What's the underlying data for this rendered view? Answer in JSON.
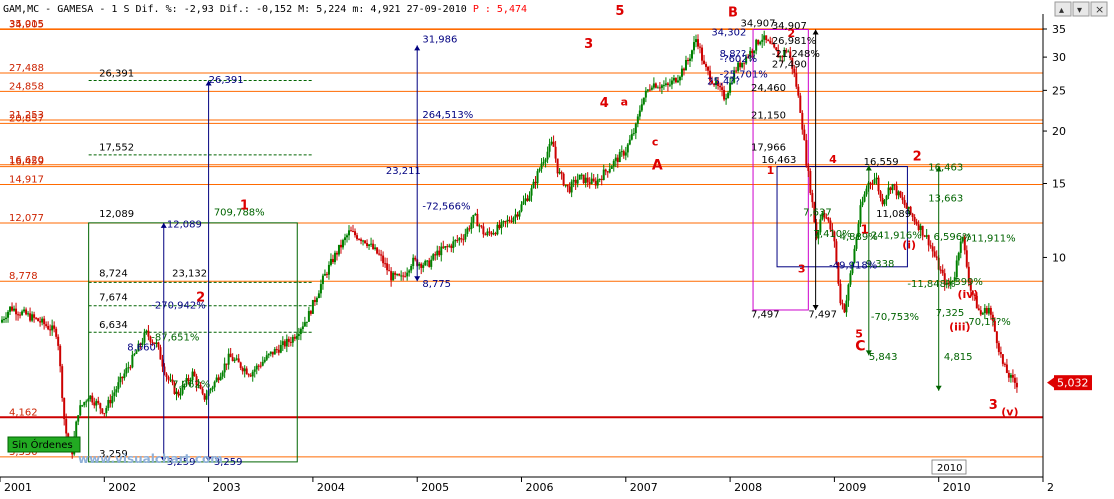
{
  "header": {
    "symbol": "GAM,MC",
    "name": "GAMESA",
    "interval": "1 S",
    "dif_pct_label": "Dif. %:",
    "dif_pct": "-2,93",
    "dif_label": "Dif.:",
    "dif": "-0,152",
    "max_label": "M:",
    "max": "5,224",
    "min_label": "m:",
    "min": "4,921",
    "date": "27-09-2010",
    "price_label": "P :",
    "price": "5,474"
  },
  "footer": {
    "orders_label": "Sin Órdenes",
    "watermark": "www.visualchart.com"
  },
  "window_buttons": [
    "▴",
    "▾",
    "×"
  ],
  "current_price_badge": "5,032",
  "colors": {
    "up_candle": "#008000",
    "down_candle": "#cc0000",
    "level_line": "#ff6a00",
    "support_line": "#cc0000",
    "wave_label": "#dd0000",
    "price_text": "#ff0000",
    "badge_bg": "#dd0000",
    "dark_green": "#006400",
    "magenta": "#cc00cc",
    "navy": "#000080"
  },
  "chart_data": {
    "type": "candlestick",
    "scale": "log",
    "ylim": [
      3.0,
      38.0
    ],
    "xlim": [
      2001.0,
      2011.0
    ],
    "x_ticks": [
      "2001",
      "2002",
      "2003",
      "2004",
      "2005",
      "2006",
      "2007",
      "2008",
      "2009",
      "2010",
      "2"
    ],
    "y_ticks": [
      35,
      30,
      25,
      20,
      15,
      10
    ],
    "year_box_label": "2010",
    "price_path": [
      [
        2001.0,
        7.0
      ],
      [
        2001.1,
        7.6
      ],
      [
        2001.25,
        7.3
      ],
      [
        2001.4,
        7.0
      ],
      [
        2001.55,
        6.6
      ],
      [
        2001.62,
        4.0
      ],
      [
        2001.68,
        3.3
      ],
      [
        2001.75,
        4.3
      ],
      [
        2001.85,
        4.7
      ],
      [
        2002.0,
        4.3
      ],
      [
        2002.1,
        4.8
      ],
      [
        2002.25,
        5.6
      ],
      [
        2002.4,
        6.6
      ],
      [
        2002.5,
        6.2
      ],
      [
        2002.6,
        5.2
      ],
      [
        2002.7,
        4.7
      ],
      [
        2002.85,
        5.3
      ],
      [
        2002.95,
        4.6
      ],
      [
        2003.05,
        5.0
      ],
      [
        2003.2,
        5.8
      ],
      [
        2003.4,
        5.3
      ],
      [
        2003.6,
        5.9
      ],
      [
        2003.8,
        6.4
      ],
      [
        2003.95,
        7.2
      ],
      [
        2004.1,
        8.9
      ],
      [
        2004.2,
        10.0
      ],
      [
        2004.35,
        11.5
      ],
      [
        2004.5,
        11.0
      ],
      [
        2004.65,
        10.0
      ],
      [
        2004.75,
        9.0
      ],
      [
        2004.85,
        8.9
      ],
      [
        2004.95,
        9.8
      ],
      [
        2005.1,
        9.6
      ],
      [
        2005.2,
        10.3
      ],
      [
        2005.3,
        10.6
      ],
      [
        2005.45,
        11.3
      ],
      [
        2005.55,
        12.5
      ],
      [
        2005.65,
        11.3
      ],
      [
        2005.8,
        11.8
      ],
      [
        2005.95,
        12.7
      ],
      [
        2006.1,
        14.5
      ],
      [
        2006.2,
        17.0
      ],
      [
        2006.3,
        18.8
      ],
      [
        2006.35,
        16.0
      ],
      [
        2006.45,
        14.5
      ],
      [
        2006.55,
        15.5
      ],
      [
        2006.7,
        15.0
      ],
      [
        2006.85,
        16.5
      ],
      [
        2007.0,
        18.0
      ],
      [
        2007.1,
        20.5
      ],
      [
        2007.15,
        23.5
      ],
      [
        2007.25,
        26.0
      ],
      [
        2007.4,
        25.5
      ],
      [
        2007.5,
        27.0
      ],
      [
        2007.6,
        29.5
      ],
      [
        2007.68,
        33.5
      ],
      [
        2007.75,
        28.5
      ],
      [
        2007.85,
        26.0
      ],
      [
        2007.95,
        24.0
      ],
      [
        2008.05,
        28.0
      ],
      [
        2008.2,
        31.0
      ],
      [
        2008.3,
        33.5
      ],
      [
        2008.38,
        32.0
      ],
      [
        2008.48,
        30.0
      ],
      [
        2008.55,
        31.5
      ],
      [
        2008.62,
        27.0
      ],
      [
        2008.68,
        22.0
      ],
      [
        2008.73,
        17.0
      ],
      [
        2008.78,
        14.0
      ],
      [
        2008.83,
        11.0
      ],
      [
        2008.88,
        13.0
      ],
      [
        2008.92,
        12.5
      ],
      [
        2009.0,
        11.0
      ],
      [
        2009.05,
        8.0
      ],
      [
        2009.1,
        7.5
      ],
      [
        2009.18,
        10.0
      ],
      [
        2009.25,
        13.0
      ],
      [
        2009.32,
        15.0
      ],
      [
        2009.4,
        15.5
      ],
      [
        2009.45,
        13.5
      ],
      [
        2009.55,
        15.0
      ],
      [
        2009.62,
        14.0
      ],
      [
        2009.7,
        13.0
      ],
      [
        2009.8,
        12.0
      ],
      [
        2009.9,
        11.0
      ],
      [
        2010.0,
        9.5
      ],
      [
        2010.08,
        8.5
      ],
      [
        2010.15,
        9.0
      ],
      [
        2010.22,
        11.5
      ],
      [
        2010.3,
        8.5
      ],
      [
        2010.4,
        7.3
      ],
      [
        2010.48,
        7.6
      ],
      [
        2010.55,
        6.5
      ],
      [
        2010.62,
        5.5
      ],
      [
        2010.7,
        5.1
      ],
      [
        2010.75,
        5.0
      ]
    ],
    "horizontal_levels": [
      {
        "price": 35.015,
        "label": "35,015",
        "color": "#ff6a00",
        "dx": 0
      },
      {
        "price": 34.905,
        "label": "34,905",
        "color": "#ff6a00",
        "dx": 0
      },
      {
        "price": 27.488,
        "label": "27,488",
        "color": "#ff6a00",
        "dx": 0
      },
      {
        "price": 24.858,
        "label": "24,858",
        "color": "#ff6a00",
        "dx": 0
      },
      {
        "price": 21.253,
        "label": "21,253",
        "color": "#ff6a00",
        "dx": 0
      },
      {
        "price": 20.857,
        "label": "20,857",
        "color": "#ff6a00",
        "dx": 0
      },
      {
        "price": 16.62,
        "label": "16,620",
        "color": "#ff6a00",
        "dx": 0
      },
      {
        "price": 16.459,
        "label": "16,459",
        "color": "#ff6a00",
        "dx": 0
      },
      {
        "price": 14.917,
        "label": "14,917",
        "color": "#ff6a00",
        "dx": 0
      },
      {
        "price": 12.077,
        "label": "12,077",
        "color": "#ff6a00",
        "dx": 0
      },
      {
        "price": 8.778,
        "label": "8,778",
        "color": "#ff6a00",
        "dx": 0
      },
      {
        "price": 4.162,
        "label": "4,162",
        "color": "#cc0000",
        "dx": 0
      },
      {
        "price": 3.35,
        "label": "3,350",
        "color": "#ff6a00",
        "dx": 0
      }
    ],
    "dashed_levels": [
      {
        "x1": 2001.85,
        "x2": 2004.0,
        "price": 26.391,
        "label": "26,391"
      },
      {
        "x1": 2001.85,
        "x2": 2004.0,
        "price": 17.552,
        "label": "17,552"
      },
      {
        "x1": 2001.85,
        "x2": 2004.0,
        "price": 8.724,
        "label": "8,724"
      },
      {
        "x1": 2001.85,
        "x2": 2004.0,
        "price": 7.674,
        "label": "7,674"
      },
      {
        "x1": 2001.85,
        "x2": 2004.0,
        "price": 6.634,
        "label": "6,634"
      }
    ],
    "fib_boxes": [
      {
        "x1": 2001.85,
        "x2": 2003.85,
        "p_low": 3.259,
        "p_high": 12.089,
        "color": "#006400"
      },
      {
        "x1": 2008.22,
        "x2": 2008.75,
        "p_low": 7.497,
        "p_high": 34.907,
        "color": "#cc00cc"
      },
      {
        "x1": 2008.45,
        "x2": 2009.7,
        "p_low": 9.5,
        "p_high": 16.463,
        "color": "#000080"
      }
    ],
    "vertical_arrows": [
      {
        "x": 2002.57,
        "p_from": 3.259,
        "p_to": 12.089,
        "color": "#000080"
      },
      {
        "x": 2003.0,
        "p_from": 3.259,
        "p_to": 26.391,
        "color": "#000080"
      },
      {
        "x": 2005.0,
        "p_from": 8.775,
        "p_to": 31.986,
        "color": "#000080"
      },
      {
        "x": 2008.82,
        "p_from": 7.497,
        "p_to": 34.907,
        "color": "#000000"
      },
      {
        "x": 2009.33,
        "p_from": 5.843,
        "p_to": 16.559,
        "color": "#006400"
      },
      {
        "x": 2010.0,
        "p_from": 4.815,
        "p_to": 16.463,
        "color": "#006400"
      }
    ],
    "annotations": [
      {
        "x": 2001.95,
        "p": 27.0,
        "text": "26,391",
        "color": "#000000"
      },
      {
        "x": 2003.0,
        "p": 26.0,
        "text": "26,391",
        "color": "#000080"
      },
      {
        "x": 2001.95,
        "p": 18.0,
        "text": "17,552",
        "color": "#000000"
      },
      {
        "x": 2001.95,
        "p": 12.5,
        "text": "12,089",
        "color": "#000000"
      },
      {
        "x": 2002.6,
        "p": 11.8,
        "text": "12,089",
        "color": "#000080"
      },
      {
        "x": 2003.05,
        "p": 12.6,
        "text": "709,788%",
        "color": "#006400"
      },
      {
        "x": 2001.95,
        "p": 9.0,
        "text": "8,724",
        "color": "#000000"
      },
      {
        "x": 2002.65,
        "p": 9.0,
        "text": "23,132",
        "color": "#000000"
      },
      {
        "x": 2001.95,
        "p": 7.9,
        "text": "7,674",
        "color": "#000000"
      },
      {
        "x": 2002.45,
        "p": 7.55,
        "text": "-270,942%",
        "color": "#000080"
      },
      {
        "x": 2001.95,
        "p": 6.8,
        "text": "6,634",
        "color": "#000000"
      },
      {
        "x": 2002.45,
        "p": 6.35,
        "text": "-87,651%",
        "color": "#006400"
      },
      {
        "x": 2002.22,
        "p": 6.0,
        "text": "8,660",
        "color": "#000080"
      },
      {
        "x": 2002.65,
        "p": 4.9,
        "text": "7,062%",
        "color": "#006400"
      },
      {
        "x": 2001.95,
        "p": 3.35,
        "text": "3,259",
        "color": "#000000"
      },
      {
        "x": 2002.6,
        "p": 3.2,
        "text": "3,259",
        "color": "#000080"
      },
      {
        "x": 2003.05,
        "p": 3.2,
        "text": "3,259",
        "color": "#000080"
      },
      {
        "x": 2005.05,
        "p": 32.5,
        "text": "31,986",
        "color": "#000080"
      },
      {
        "x": 2005.05,
        "p": 21.5,
        "text": "264,513%",
        "color": "#000080"
      },
      {
        "x": 2004.7,
        "p": 15.8,
        "text": "23,211",
        "color": "#000080"
      },
      {
        "x": 2005.05,
        "p": 13.0,
        "text": "-72,566%",
        "color": "#000080"
      },
      {
        "x": 2005.05,
        "p": 8.5,
        "text": "8,775",
        "color": "#000080"
      },
      {
        "x": 2007.9,
        "p": 30.0,
        "text": "8,8??",
        "color": "#000080"
      },
      {
        "x": 2007.82,
        "p": 33.8,
        "text": "34,302",
        "color": "#000080"
      },
      {
        "x": 2007.9,
        "p": 29.2,
        "text": "-?602%",
        "color": "#000080"
      },
      {
        "x": 2007.9,
        "p": 26.8,
        "text": "-25,701%",
        "color": "#000080"
      },
      {
        "x": 2007.78,
        "p": 25.8,
        "text": "25,4??",
        "color": "#000080"
      },
      {
        "x": 2008.1,
        "p": 35.5,
        "text": "34,907",
        "color": "#000000"
      },
      {
        "x": 2008.4,
        "p": 35.0,
        "text": "34,907",
        "color": "#000000"
      },
      {
        "x": 2008.4,
        "p": 32.2,
        "text": "26,981%",
        "color": "#000000"
      },
      {
        "x": 2008.4,
        "p": 30.0,
        "text": "-21,248%",
        "color": "#000000"
      },
      {
        "x": 2008.4,
        "p": 28.3,
        "text": "27,490",
        "color": "#000000"
      },
      {
        "x": 2008.2,
        "p": 24.9,
        "text": "24,460",
        "color": "#000000"
      },
      {
        "x": 2008.2,
        "p": 21.4,
        "text": "21,150",
        "color": "#000000"
      },
      {
        "x": 2008.2,
        "p": 18.0,
        "text": "17,966",
        "color": "#000000"
      },
      {
        "x": 2008.3,
        "p": 16.8,
        "text": "16,463",
        "color": "#000000"
      },
      {
        "x": 2008.2,
        "p": 7.2,
        "text": "7,497",
        "color": "#000000"
      },
      {
        "x": 2008.75,
        "p": 7.2,
        "text": "7,497",
        "color": "#000000"
      },
      {
        "x": 2009.28,
        "p": 16.6,
        "text": "16,559",
        "color": "#000000"
      },
      {
        "x": 2009.9,
        "p": 16.1,
        "text": "16,463",
        "color": "#006400"
      },
      {
        "x": 2009.9,
        "p": 13.6,
        "text": "13,663",
        "color": "#006400"
      },
      {
        "x": 2009.4,
        "p": 12.5,
        "text": "11,089",
        "color": "#000000"
      },
      {
        "x": 2009.35,
        "p": 11.1,
        "text": "241,916%",
        "color": "#006400"
      },
      {
        "x": 2009.95,
        "p": 11.0,
        "text": "6,596%",
        "color": "#006400"
      },
      {
        "x": 2010.25,
        "p": 10.9,
        "text": "711,911%",
        "color": "#006400"
      },
      {
        "x": 2009.3,
        "p": 9.5,
        "text": "9,338",
        "color": "#006400"
      },
      {
        "x": 2009.7,
        "p": 8.5,
        "text": "-11,848%",
        "color": "#006400"
      },
      {
        "x": 2010.15,
        "p": 8.6,
        "text": "399%",
        "color": "#006400"
      },
      {
        "x": 2009.35,
        "p": 7.1,
        "text": "-70,753%",
        "color": "#006400"
      },
      {
        "x": 2009.97,
        "p": 7.25,
        "text": "7,325",
        "color": "#006400"
      },
      {
        "x": 2010.25,
        "p": 6.9,
        "text": "-70,1??%",
        "color": "#006400"
      },
      {
        "x": 2009.33,
        "p": 5.7,
        "text": "5,843",
        "color": "#006400"
      },
      {
        "x": 2010.05,
        "p": 5.7,
        "text": "4,815",
        "color": "#006400"
      },
      {
        "x": 2008.8,
        "p": 11.2,
        "text": "7,410%",
        "color": "#006400"
      },
      {
        "x": 2009.05,
        "p": 11.0,
        "text": "4,889%",
        "color": "#006400"
      },
      {
        "x": 2008.95,
        "p": 9.4,
        "text": "-49,918%",
        "color": "#000080"
      },
      {
        "x": 2008.7,
        "p": 12.6,
        "text": "7,637",
        "color": "#006400"
      }
    ],
    "wave_labels": [
      {
        "x": 2003.3,
        "p": 13.0,
        "text": "1",
        "color": "#dd0000",
        "size": 13
      },
      {
        "x": 2002.88,
        "p": 7.85,
        "text": "2",
        "color": "#dd0000",
        "size": 13
      },
      {
        "x": 2006.6,
        "p": 31.5,
        "text": "3",
        "color": "#dd0000",
        "size": 13
      },
      {
        "x": 2006.75,
        "p": 22.8,
        "text": "4",
        "color": "#dd0000",
        "size": 13
      },
      {
        "x": 2006.9,
        "p": 37.8,
        "text": "5",
        "color": "#dd0000",
        "size": 13
      },
      {
        "x": 2006.95,
        "p": 23.0,
        "text": "a",
        "color": "#dd0000",
        "size": 11
      },
      {
        "x": 2007.25,
        "p": 18.5,
        "text": "c",
        "color": "#dd0000",
        "size": 11
      },
      {
        "x": 2007.25,
        "p": 16.2,
        "text": "A",
        "color": "#dd0000",
        "size": 14
      },
      {
        "x": 2007.98,
        "p": 37.5,
        "text": "B",
        "color": "#dd0000",
        "size": 13
      },
      {
        "x": 2008.55,
        "p": 33.5,
        "text": "2",
        "color": "#dd0000",
        "size": 11
      },
      {
        "x": 2008.35,
        "p": 15.8,
        "text": "1",
        "color": "#dd0000",
        "size": 11
      },
      {
        "x": 2008.95,
        "p": 16.8,
        "text": "4",
        "color": "#dd0000",
        "size": 11
      },
      {
        "x": 2008.65,
        "p": 9.2,
        "text": "3",
        "color": "#dd0000",
        "size": 11
      },
      {
        "x": 2009.2,
        "p": 6.45,
        "text": "5",
        "color": "#dd0000",
        "size": 11
      },
      {
        "x": 2009.2,
        "p": 6.0,
        "text": "C",
        "color": "#dd0000",
        "size": 14
      },
      {
        "x": 2009.25,
        "p": 11.4,
        "text": "1",
        "color": "#dd0000",
        "size": 12
      },
      {
        "x": 2009.75,
        "p": 17.0,
        "text": "2",
        "color": "#dd0000",
        "size": 13
      },
      {
        "x": 2009.65,
        "p": 10.5,
        "text": "(i)",
        "color": "#dd0000",
        "size": 11
      },
      {
        "x": 2010.18,
        "p": 8.0,
        "text": "(iv)",
        "color": "#dd0000",
        "size": 11
      },
      {
        "x": 2010.1,
        "p": 6.7,
        "text": "(iii)",
        "color": "#dd0000",
        "size": 11
      },
      {
        "x": 2010.48,
        "p": 4.35,
        "text": "3",
        "color": "#dd0000",
        "size": 13
      },
      {
        "x": 2010.6,
        "p": 4.2,
        "text": "(v)",
        "color": "#dd0000",
        "size": 11
      }
    ]
  }
}
